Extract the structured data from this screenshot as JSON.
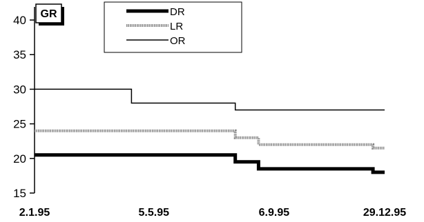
{
  "chart_data": {
    "type": "line",
    "step": true,
    "title": "",
    "badge": "GR",
    "xlabel": "",
    "ylabel": "",
    "ylim": [
      15,
      41
    ],
    "yticks": [
      15,
      20,
      25,
      30,
      35,
      40
    ],
    "x_range": [
      "1995-01-02",
      "1995-12-29"
    ],
    "xticks": [
      {
        "date": "1995-01-02",
        "label": "2.1.95"
      },
      {
        "date": "1995-05-05",
        "label": "5.5.95"
      },
      {
        "date": "1995-09-06",
        "label": "6.9.95"
      },
      {
        "date": "1995-12-29",
        "label": "29.12.95"
      }
    ],
    "grid": false,
    "legend": "top-center",
    "series": [
      {
        "name": "DR",
        "style": "thick",
        "color": "#000000",
        "points": [
          {
            "x": "1995-01-02",
            "y": 20.5
          },
          {
            "x": "1995-07-28",
            "y": 20.5
          },
          {
            "x": "1995-07-28",
            "y": 19.5
          },
          {
            "x": "1995-08-21",
            "y": 19.5
          },
          {
            "x": "1995-08-21",
            "y": 18.5
          },
          {
            "x": "1995-12-17",
            "y": 18.5
          },
          {
            "x": "1995-12-17",
            "y": 18.0
          },
          {
            "x": "1995-12-29",
            "y": 18.0
          }
        ]
      },
      {
        "name": "LR",
        "style": "hatched",
        "color": "#888888",
        "points": [
          {
            "x": "1995-01-02",
            "y": 24.0
          },
          {
            "x": "1995-07-28",
            "y": 24.0
          },
          {
            "x": "1995-07-28",
            "y": 23.0
          },
          {
            "x": "1995-08-21",
            "y": 23.0
          },
          {
            "x": "1995-08-21",
            "y": 22.0
          },
          {
            "x": "1995-12-17",
            "y": 22.0
          },
          {
            "x": "1995-12-17",
            "y": 21.5
          },
          {
            "x": "1995-12-29",
            "y": 21.5
          }
        ]
      },
      {
        "name": "OR",
        "style": "thin",
        "color": "#000000",
        "points": [
          {
            "x": "1995-01-02",
            "y": 30.0
          },
          {
            "x": "1995-04-12",
            "y": 30.0
          },
          {
            "x": "1995-04-12",
            "y": 28.0
          },
          {
            "x": "1995-07-28",
            "y": 28.0
          },
          {
            "x": "1995-07-28",
            "y": 27.0
          },
          {
            "x": "1995-12-29",
            "y": 27.0
          }
        ]
      }
    ]
  }
}
